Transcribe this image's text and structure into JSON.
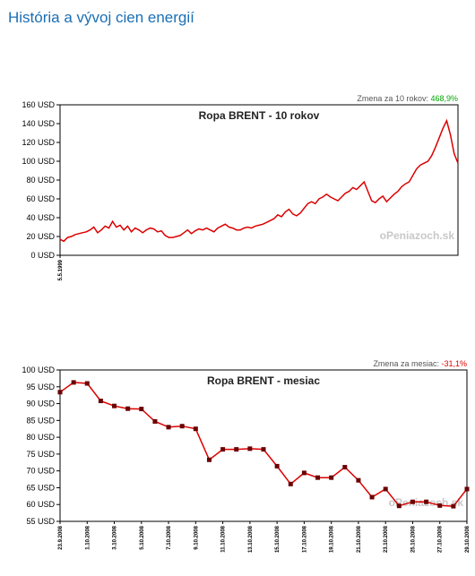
{
  "page": {
    "title": "História a vývoj cien energií"
  },
  "colors": {
    "series": "#dd0000",
    "marker": "#6b0000",
    "title": "#1a6fb4",
    "up": "#00aa00",
    "down": "#dd0000"
  },
  "chart_data": [
    {
      "type": "line",
      "title": "Ropa BRENT - 10 rokov",
      "change_label": "Zmena za 10 rokov:",
      "change_value": "468,9%",
      "watermark": "oPeniazoch.sk",
      "ylim": [
        0,
        160
      ],
      "y_ticks": [
        "0 USD",
        "20 USD",
        "40 USD",
        "60 USD",
        "80 USD",
        "100 USD",
        "120 USD",
        "140 USD",
        "160 USD"
      ],
      "x_labels": [
        "5.5.1999"
      ],
      "series": [
        {
          "values": [
            17,
            15,
            19,
            20,
            22,
            23,
            24,
            25,
            27,
            30,
            24,
            27,
            31,
            29,
            36,
            30,
            32,
            27,
            31,
            25,
            29,
            27,
            24,
            27,
            29,
            28,
            25,
            26,
            21,
            19,
            19,
            20,
            21,
            24,
            27,
            23,
            26,
            28,
            27,
            29,
            27,
            25,
            29,
            31,
            33,
            30,
            29,
            27,
            27,
            29,
            30,
            29,
            31,
            32,
            33,
            35,
            37,
            39,
            43,
            41,
            46,
            49,
            44,
            42,
            45,
            50,
            55,
            57,
            55,
            60,
            62,
            65,
            62,
            60,
            58,
            62,
            66,
            68,
            72,
            70,
            74,
            78,
            68,
            58,
            56,
            60,
            63,
            57,
            61,
            65,
            68,
            73,
            76,
            78,
            85,
            92,
            96,
            98,
            100,
            106,
            115,
            125,
            135,
            143,
            128,
            108,
            98
          ]
        }
      ]
    },
    {
      "type": "line",
      "title": "Ropa BRENT - mesiac",
      "change_label": "Zmena za mesiac:",
      "change_value": "-31,1%",
      "watermark": "oPeniazoch.sk",
      "ylim": [
        55,
        100
      ],
      "y_ticks": [
        "55 USD",
        "60 USD",
        "65 USD",
        "70 USD",
        "75 USD",
        "80 USD",
        "85 USD",
        "90 USD",
        "95 USD",
        "100 USD"
      ],
      "x_labels": [
        "23.9.2008",
        "1.10.2008",
        "3.10.2008",
        "5.10.2008",
        "7.10.2008",
        "9.10.2008",
        "11.10.2008",
        "13.10.2008",
        "15.10.2008",
        "17.10.2008",
        "19.10.2008",
        "21.10.2008",
        "23.10.2008",
        "25.10.2008",
        "27.10.2008",
        "29.10.2008"
      ],
      "series": [
        {
          "values": [
            93.4,
            96.3,
            96.0,
            90.8,
            89.3,
            88.5,
            88.4,
            84.7,
            83.0,
            83.3,
            82.5,
            73.3,
            76.4,
            76.4,
            76.6,
            76.4,
            71.4,
            66.1,
            69.4,
            68.0,
            68.0,
            71.1,
            67.2,
            62.2,
            64.6,
            59.6,
            60.8,
            60.8,
            59.7,
            59.5,
            64.6
          ]
        }
      ]
    }
  ]
}
